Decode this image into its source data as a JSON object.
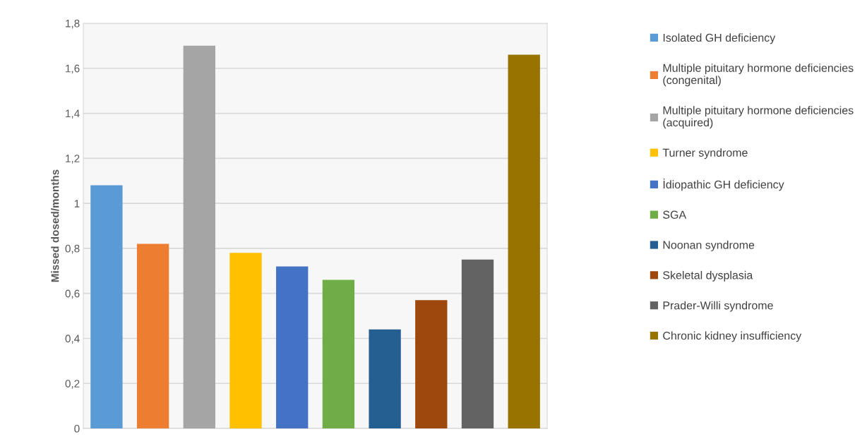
{
  "chart_data": {
    "type": "bar",
    "ylabel": "Missed dosed/months",
    "categories": [
      null,
      null,
      null,
      null,
      null,
      null,
      null,
      null,
      null,
      null
    ],
    "series": [
      {
        "name": "Isolated GH deficiency",
        "color": "#5b9bd5",
        "values": [
          1.08,
          null,
          null,
          null,
          null,
          null,
          null,
          null,
          null,
          null
        ]
      },
      {
        "name": "Multiple pituitary hormone deficiencies\n(congenital)",
        "color": "#ed7d31",
        "values": [
          null,
          0.82,
          null,
          null,
          null,
          null,
          null,
          null,
          null,
          null
        ]
      },
      {
        "name": "Multiple pituitary hormone deficiencies\n(acquired)",
        "color": "#a5a5a5",
        "values": [
          null,
          null,
          1.7,
          null,
          null,
          null,
          null,
          null,
          null,
          null
        ]
      },
      {
        "name": "Turner syndrome",
        "color": "#ffc000",
        "values": [
          null,
          null,
          null,
          0.78,
          null,
          null,
          null,
          null,
          null,
          null
        ]
      },
      {
        "name": "İdiopathic GH deficiency",
        "color": "#4472c4",
        "values": [
          null,
          null,
          null,
          null,
          0.72,
          null,
          null,
          null,
          null,
          null
        ]
      },
      {
        "name": "SGA",
        "color": "#70ad47",
        "values": [
          null,
          null,
          null,
          null,
          null,
          0.66,
          null,
          null,
          null,
          null
        ]
      },
      {
        "name": "Noonan syndrome",
        "color": "#255e91",
        "values": [
          null,
          null,
          null,
          null,
          null,
          null,
          0.44,
          null,
          null,
          null
        ]
      },
      {
        "name": "Skeletal dysplasia",
        "color": "#9e480e",
        "values": [
          null,
          null,
          null,
          null,
          null,
          null,
          null,
          0.57,
          null,
          null
        ]
      },
      {
        "name": "Prader-Willi syndrome",
        "color": "#636363",
        "values": [
          null,
          null,
          null,
          null,
          null,
          null,
          null,
          null,
          0.75,
          null
        ]
      },
      {
        "name": "Chronic kidney insufficiency",
        "color": "#997300",
        "values": [
          null,
          null,
          null,
          null,
          null,
          null,
          null,
          null,
          null,
          1.66
        ]
      }
    ],
    "ylim": [
      0,
      1.8
    ],
    "yticks": [
      0,
      {
        "value": 0.2,
        "label": "0,2"
      },
      {
        "value": 0.4,
        "label": "0,4"
      },
      {
        "value": 0.6,
        "label": "0,6"
      },
      {
        "value": 0.8,
        "label": "0,8"
      },
      1,
      {
        "value": 1.2,
        "label": "1,2"
      },
      {
        "value": 1.4,
        "label": "1,4"
      },
      {
        "value": 1.6,
        "label": "1,6"
      },
      {
        "value": 1.8,
        "label": "1,8"
      }
    ],
    "grid": "y",
    "legend": "right",
    "tick_labels": "y"
  }
}
